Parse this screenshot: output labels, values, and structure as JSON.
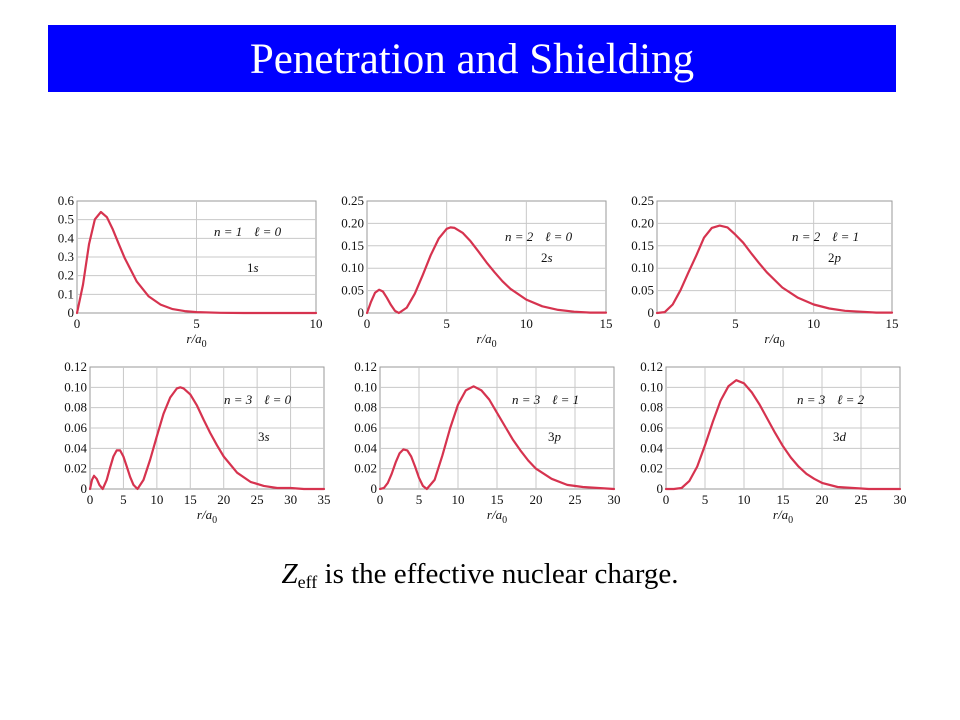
{
  "header": {
    "title": "Penetration and Shielding"
  },
  "caption": {
    "z_symbol": "Z",
    "z_subscript": "eff",
    "rest": " is the effective nuclear charge."
  },
  "colors": {
    "header_bg": "#0000ff",
    "curve": "#d6334f",
    "grid": "#c8c8c8"
  },
  "chart_data": [
    {
      "type": "line",
      "xlabel": "r/a0",
      "xlim": [
        0,
        10
      ],
      "ylim": [
        0,
        0.6
      ],
      "xticks": [
        0,
        5,
        10
      ],
      "yticks": [
        "0",
        "0.1",
        "0.2",
        "0.3",
        "0.4",
        "0.5",
        "0.6"
      ],
      "n_label": "n = 1",
      "l_label": "ℓ = 0",
      "orbital_num": "1",
      "orbital_letter": "s",
      "series": [
        {
          "x": [
            0,
            0.25,
            0.5,
            0.75,
            1,
            1.25,
            1.5,
            1.75,
            2,
            2.5,
            3,
            3.5,
            4,
            4.5,
            5,
            6,
            7,
            8,
            9,
            10
          ],
          "y": [
            0,
            0.152,
            0.368,
            0.502,
            0.541,
            0.513,
            0.448,
            0.369,
            0.293,
            0.168,
            0.089,
            0.045,
            0.021,
            0.01,
            0.005,
            0.001,
            0,
            0,
            0,
            0
          ]
        }
      ],
      "grid": true
    },
    {
      "type": "line",
      "xlabel": "r/a0",
      "xlim": [
        0,
        15
      ],
      "ylim": [
        0,
        0.25
      ],
      "xticks": [
        0,
        5,
        10,
        15
      ],
      "yticks": [
        "0",
        "0.05",
        "0.10",
        "0.15",
        "0.20",
        "0.25"
      ],
      "n_label": "n = 2",
      "l_label": "ℓ = 0",
      "orbital_num": "2",
      "orbital_letter": "s",
      "series": [
        {
          "x": [
            0,
            0.25,
            0.5,
            0.76,
            1,
            1.25,
            1.5,
            1.75,
            2,
            2.5,
            3,
            3.5,
            4,
            4.5,
            5,
            5.24,
            5.5,
            6,
            6.5,
            7,
            7.5,
            8,
            8.5,
            9,
            10,
            11,
            12,
            13,
            14,
            15
          ],
          "y": [
            0,
            0.025,
            0.045,
            0.052,
            0.048,
            0.034,
            0.018,
            0.005,
            0,
            0.012,
            0.043,
            0.085,
            0.129,
            0.166,
            0.188,
            0.191,
            0.19,
            0.179,
            0.16,
            0.137,
            0.113,
            0.091,
            0.071,
            0.054,
            0.03,
            0.015,
            0.007,
            0.003,
            0.001,
            0.001
          ]
        }
      ],
      "grid": true
    },
    {
      "type": "line",
      "xlabel": "r/a0",
      "xlim": [
        0,
        15
      ],
      "ylim": [
        0,
        0.25
      ],
      "xticks": [
        0,
        5,
        10,
        15
      ],
      "yticks": [
        "0",
        "0.05",
        "0.10",
        "0.15",
        "0.20",
        "0.25"
      ],
      "n_label": "n = 2",
      "l_label": "ℓ = 1",
      "orbital_num": "2",
      "orbital_letter": "p",
      "series": [
        {
          "x": [
            0,
            0.5,
            1,
            1.5,
            2,
            2.5,
            3,
            3.5,
            4,
            4.5,
            5,
            5.5,
            6,
            6.5,
            7,
            8,
            9,
            10,
            11,
            12,
            13,
            14,
            15
          ],
          "y": [
            0,
            0.002,
            0.019,
            0.051,
            0.09,
            0.128,
            0.168,
            0.19,
            0.195,
            0.191,
            0.175,
            0.157,
            0.134,
            0.112,
            0.091,
            0.057,
            0.034,
            0.019,
            0.01,
            0.005,
            0.003,
            0.001,
            0.001
          ]
        }
      ],
      "grid": true
    },
    {
      "type": "line",
      "xlabel": "r/a0",
      "xlim": [
        0,
        35
      ],
      "ylim": [
        0,
        0.12
      ],
      "xticks": [
        0,
        5,
        10,
        15,
        20,
        25,
        30,
        35
      ],
      "yticks": [
        "0",
        "0.02",
        "0.04",
        "0.06",
        "0.08",
        "0.10",
        "0.12"
      ],
      "n_label": "n = 3",
      "l_label": "ℓ = 0",
      "orbital_num": "3",
      "orbital_letter": "s",
      "series": [
        {
          "x": [
            0,
            0.3,
            0.6,
            1,
            1.4,
            1.9,
            2.5,
            3,
            3.5,
            4,
            4.5,
            5,
            5.5,
            6,
            6.5,
            7.1,
            8,
            9,
            10,
            11,
            12,
            13,
            13.5,
            14,
            15,
            16,
            17,
            18,
            19,
            20,
            22,
            24,
            26,
            28,
            30,
            32,
            35
          ],
          "y": [
            0,
            0.009,
            0.013,
            0.01,
            0.004,
            0,
            0.009,
            0.021,
            0.032,
            0.038,
            0.038,
            0.032,
            0.022,
            0.012,
            0.004,
            0,
            0.009,
            0.029,
            0.052,
            0.074,
            0.09,
            0.099,
            0.1,
            0.099,
            0.093,
            0.082,
            0.068,
            0.055,
            0.043,
            0.032,
            0.016,
            0.007,
            0.003,
            0.001,
            0.001,
            0,
            0
          ]
        }
      ],
      "grid": true
    },
    {
      "type": "line",
      "xlabel": "r/a0",
      "xlim": [
        0,
        30
      ],
      "ylim": [
        0,
        0.12
      ],
      "xticks": [
        0,
        5,
        10,
        15,
        20,
        25,
        30
      ],
      "yticks": [
        "0",
        "0.02",
        "0.04",
        "0.06",
        "0.08",
        "0.10",
        "0.12"
      ],
      "n_label": "n = 3",
      "l_label": "ℓ = 1",
      "orbital_num": "3",
      "orbital_letter": "p",
      "series": [
        {
          "x": [
            0,
            0.5,
            1,
            1.5,
            2,
            2.5,
            3,
            3.5,
            4,
            4.5,
            5,
            5.5,
            6,
            7,
            8,
            9,
            10,
            11,
            12,
            13,
            14,
            15,
            16,
            17,
            18,
            19,
            20,
            22,
            24,
            26,
            28,
            30
          ],
          "y": [
            0,
            0.001,
            0.006,
            0.015,
            0.026,
            0.035,
            0.039,
            0.038,
            0.032,
            0.022,
            0.011,
            0.003,
            0,
            0.009,
            0.033,
            0.06,
            0.083,
            0.097,
            0.101,
            0.097,
            0.088,
            0.075,
            0.062,
            0.049,
            0.038,
            0.028,
            0.02,
            0.01,
            0.004,
            0.002,
            0.001,
            0
          ]
        }
      ],
      "grid": true
    },
    {
      "type": "line",
      "xlabel": "r/a0",
      "xlim": [
        0,
        30
      ],
      "ylim": [
        0,
        0.12
      ],
      "xticks": [
        0,
        5,
        10,
        15,
        20,
        25,
        30
      ],
      "yticks": [
        "0",
        "0.02",
        "0.04",
        "0.06",
        "0.08",
        "0.10",
        "0.12"
      ],
      "n_label": "n = 3",
      "l_label": "ℓ = 2",
      "orbital_num": "3",
      "orbital_letter": "d",
      "series": [
        {
          "x": [
            0,
            1,
            2,
            3,
            4,
            5,
            6,
            7,
            8,
            9,
            10,
            11,
            12,
            13,
            14,
            15,
            16,
            17,
            18,
            19,
            20,
            22,
            24,
            26,
            28,
            30
          ],
          "y": [
            0,
            0,
            0.001,
            0.008,
            0.022,
            0.043,
            0.066,
            0.087,
            0.101,
            0.107,
            0.104,
            0.095,
            0.083,
            0.069,
            0.055,
            0.042,
            0.031,
            0.022,
            0.015,
            0.01,
            0.006,
            0.002,
            0.001,
            0,
            0,
            0
          ]
        }
      ],
      "grid": true
    }
  ]
}
